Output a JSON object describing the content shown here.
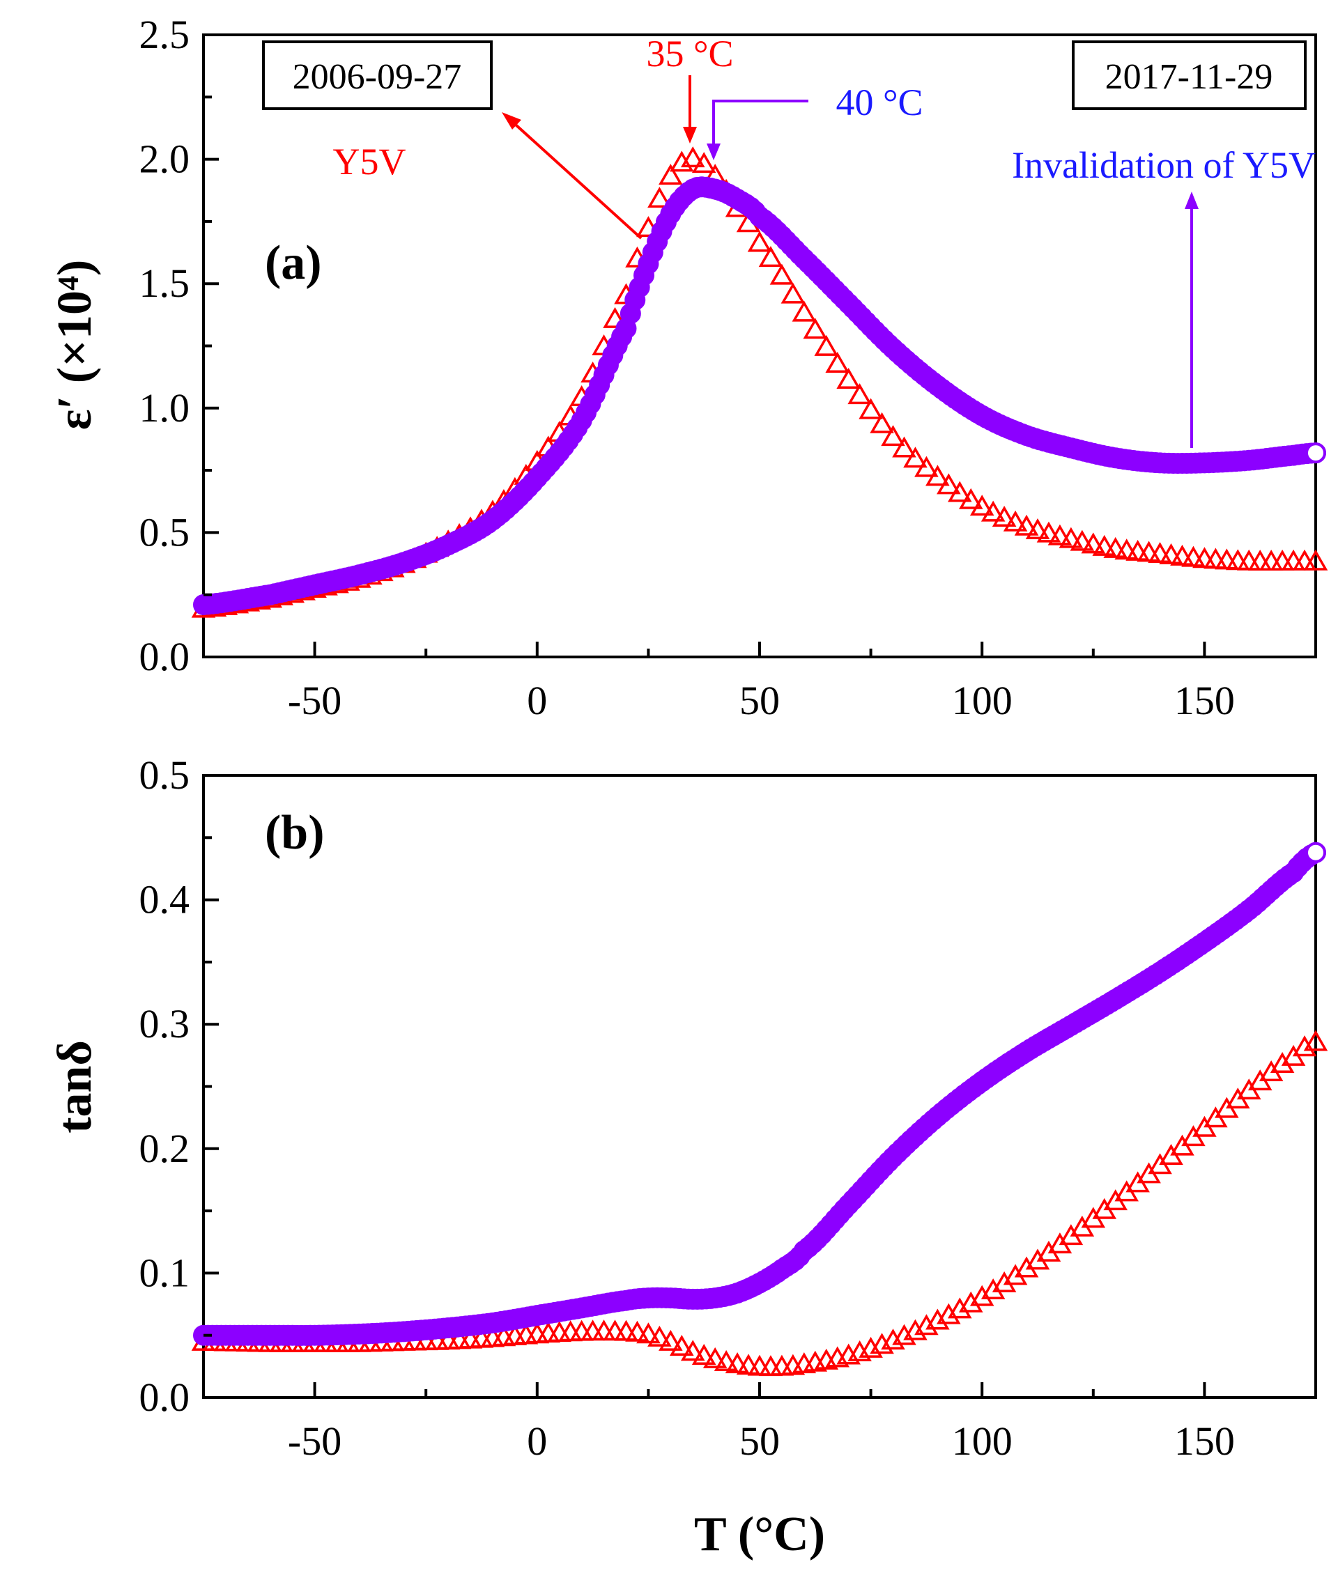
{
  "chart_data": [
    {
      "type": "scatter",
      "panel_label": "(a)",
      "ylabel": "ε′ (×10⁴)",
      "xlabel": "",
      "xlim": [
        -75,
        175
      ],
      "ylim": [
        0,
        2.5
      ],
      "xticks": [
        "-50",
        "0",
        "50",
        "100",
        "150"
      ],
      "yticks": [
        "0.0",
        "0.5",
        "1.0",
        "1.5",
        "2.0",
        "2.5"
      ],
      "series": [
        {
          "name": "2006-09-27 (Y5V)",
          "marker": "triangle",
          "color": "#ff0000",
          "x": [
            -75,
            -60,
            -50,
            -40,
            -30,
            -20,
            -10,
            0,
            10,
            20,
            25,
            30,
            35,
            40,
            45,
            50,
            60,
            70,
            80,
            90,
            100,
            110,
            120,
            130,
            140,
            150,
            160,
            170,
            175
          ],
          "y": [
            0.19,
            0.23,
            0.27,
            0.31,
            0.37,
            0.46,
            0.58,
            0.78,
            1.04,
            1.45,
            1.72,
            1.93,
            2.0,
            1.93,
            1.8,
            1.66,
            1.38,
            1.11,
            0.88,
            0.72,
            0.6,
            0.52,
            0.47,
            0.43,
            0.41,
            0.39,
            0.38,
            0.38,
            0.38
          ]
        },
        {
          "name": "2017-11-29 (Invalidation of Y5V)",
          "marker": "circle",
          "color": "#8c00ff",
          "x": [
            -75,
            -60,
            -50,
            -40,
            -30,
            -20,
            -10,
            0,
            10,
            20,
            25,
            30,
            35,
            40,
            45,
            50,
            60,
            70,
            80,
            90,
            100,
            110,
            120,
            130,
            140,
            150,
            160,
            170,
            175
          ],
          "y": [
            0.21,
            0.25,
            0.29,
            0.33,
            0.38,
            0.45,
            0.55,
            0.72,
            0.95,
            1.32,
            1.58,
            1.78,
            1.88,
            1.88,
            1.84,
            1.77,
            1.6,
            1.42,
            1.24,
            1.09,
            0.97,
            0.89,
            0.84,
            0.8,
            0.78,
            0.78,
            0.79,
            0.81,
            0.82
          ]
        }
      ],
      "annotations": {
        "peak_red": "35 °C",
        "peak_blue": "40 °C",
        "date_left": "2006-09-27",
        "date_right": "2017-11-29",
        "y5v": "Y5V",
        "invalidation": "Invalidation of Y5V"
      }
    },
    {
      "type": "scatter",
      "panel_label": "(b)",
      "ylabel": "tanδ",
      "xlabel": "T (°C)",
      "xlim": [
        -75,
        175
      ],
      "ylim": [
        0,
        0.5
      ],
      "xticks": [
        "-50",
        "0",
        "50",
        "100",
        "150"
      ],
      "yticks": [
        "0.0",
        "0.1",
        "0.2",
        "0.3",
        "0.4",
        "0.5"
      ],
      "series": [
        {
          "name": "2006-09-27 (Y5V)",
          "marker": "triangle",
          "color": "#ff0000",
          "x": [
            -75,
            -60,
            -50,
            -40,
            -30,
            -20,
            -10,
            0,
            10,
            20,
            25,
            30,
            35,
            40,
            45,
            50,
            55,
            60,
            70,
            80,
            90,
            100,
            110,
            120,
            130,
            140,
            150,
            160,
            170,
            175
          ],
          "y": [
            0.044,
            0.043,
            0.043,
            0.043,
            0.044,
            0.045,
            0.047,
            0.05,
            0.052,
            0.052,
            0.05,
            0.044,
            0.036,
            0.03,
            0.026,
            0.024,
            0.024,
            0.026,
            0.033,
            0.045,
            0.061,
            0.08,
            0.103,
            0.129,
            0.157,
            0.186,
            0.216,
            0.246,
            0.273,
            0.285
          ]
        },
        {
          "name": "2017-11-29 (Invalidation of Y5V)",
          "marker": "circle",
          "color": "#8c00ff",
          "x": [
            -75,
            -60,
            -50,
            -40,
            -30,
            -20,
            -10,
            0,
            10,
            20,
            25,
            30,
            35,
            40,
            45,
            50,
            55,
            60,
            70,
            80,
            90,
            100,
            110,
            120,
            130,
            140,
            150,
            160,
            170,
            175
          ],
          "y": [
            0.05,
            0.05,
            0.05,
            0.051,
            0.053,
            0.056,
            0.06,
            0.066,
            0.072,
            0.078,
            0.08,
            0.08,
            0.079,
            0.08,
            0.084,
            0.092,
            0.103,
            0.118,
            0.155,
            0.193,
            0.226,
            0.254,
            0.278,
            0.299,
            0.32,
            0.342,
            0.366,
            0.392,
            0.422,
            0.438
          ]
        }
      ]
    }
  ]
}
